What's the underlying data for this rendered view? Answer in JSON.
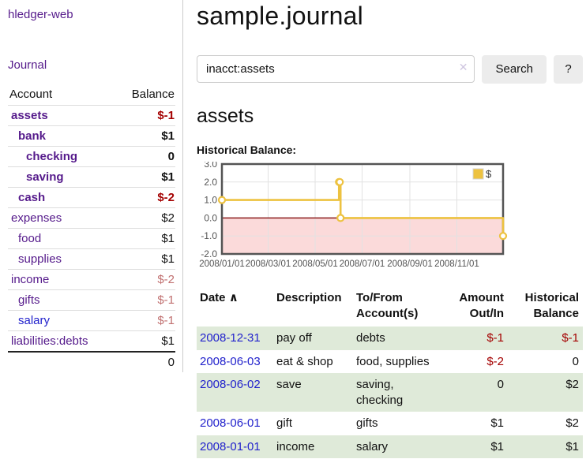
{
  "sidebar": {
    "brand": "hledger-web",
    "nav_journal": "Journal",
    "accounts": {
      "col_account": "Account",
      "col_balance": "Balance",
      "rows": [
        {
          "name": "assets",
          "depth": 1,
          "bold": true,
          "balance": "$-1",
          "neg": "strong"
        },
        {
          "name": "bank",
          "depth": 2,
          "bold": true,
          "balance": "$1"
        },
        {
          "name": "checking",
          "depth": 3,
          "bold": true,
          "balance": "0"
        },
        {
          "name": "saving",
          "depth": 3,
          "bold": true,
          "balance": "$1"
        },
        {
          "name": "cash",
          "depth": 2,
          "bold": true,
          "balance": "$-2",
          "neg": "strong"
        },
        {
          "name": "expenses",
          "depth": 1,
          "bold": false,
          "balance": "$2"
        },
        {
          "name": "food",
          "depth": 2,
          "bold": false,
          "balance": "$1"
        },
        {
          "name": "supplies",
          "depth": 2,
          "bold": false,
          "balance": "$1"
        },
        {
          "name": "income",
          "depth": 1,
          "bold": false,
          "balance": "$-2",
          "neg": "soft"
        },
        {
          "name": "gifts",
          "depth": 2,
          "bold": false,
          "balance": "$-1",
          "neg": "soft"
        },
        {
          "name": "salary",
          "depth": 2,
          "bold": false,
          "balance": "$-1",
          "neg": "soft",
          "blue": true
        },
        {
          "name": "liabilities:debts",
          "depth": 1,
          "bold": false,
          "balance": "$1"
        }
      ],
      "total": "0"
    }
  },
  "main": {
    "title": "sample.journal",
    "search": {
      "value": "inacct:assets",
      "clear_icon": "✕",
      "button_label": "Search",
      "help_label": "?"
    },
    "account_heading": "assets",
    "register": {
      "columns": {
        "date": "Date",
        "date_sort_icon": "∧",
        "description": "Description",
        "tofrom": "To/From Account(s)",
        "amount": "Amount Out/In",
        "balance": "Historical Balance"
      },
      "rows": [
        {
          "date": "2008-12-31",
          "description": "pay off",
          "tofrom": "debts",
          "amount": "$-1",
          "balance": "$-1",
          "amount_neg": true,
          "balance_neg": true
        },
        {
          "date": "2008-06-03",
          "description": "eat & shop",
          "tofrom": "food, supplies",
          "amount": "$-2",
          "balance": "0",
          "amount_neg": true
        },
        {
          "date": "2008-06-02",
          "description": "save",
          "tofrom": "saving, checking",
          "amount": "0",
          "balance": "$2"
        },
        {
          "date": "2008-06-01",
          "description": "gift",
          "tofrom": "gifts",
          "amount": "$1",
          "balance": "$2"
        },
        {
          "date": "2008-01-01",
          "description": "income",
          "tofrom": "salary",
          "amount": "$1",
          "balance": "$1"
        }
      ]
    }
  },
  "chart_data": {
    "type": "line",
    "subtype": "step",
    "title": "Historical Balance:",
    "series": [
      {
        "name": "$",
        "color": "#edc240",
        "points": [
          [
            "2008-01-01",
            1
          ],
          [
            "2008-06-01",
            2
          ],
          [
            "2008-06-02",
            2
          ],
          [
            "2008-06-03",
            0
          ],
          [
            "2008-12-31",
            -1
          ]
        ]
      }
    ],
    "x_range": [
      "2008-01-01",
      "2008-12-31"
    ],
    "x_ticks": [
      "2008/01/01",
      "2008/03/01",
      "2008/05/01",
      "2008/07/01",
      "2008/09/01",
      "2008/11/01"
    ],
    "y_ticks": [
      "3.0",
      "2.0",
      "1.0",
      "0.0",
      "-1.0",
      "-2.0"
    ],
    "ylim": [
      -2,
      3
    ],
    "grid": true,
    "legend": {
      "label": "$",
      "position": "top-right"
    },
    "negative_region_fill": "#fbdada",
    "zero_line_color": "#8b1c1c",
    "border_color": "#545454",
    "axis_text_color": "#545454"
  },
  "colors": {
    "purple": "#551a8b",
    "blue": "#2222cc",
    "neg_strong": "#a40000",
    "neg_soft": "#c17070",
    "stripe": "#dfead9",
    "divider": "#cccccc",
    "button_bg": "#ececec",
    "series_gold": "#edc240"
  }
}
